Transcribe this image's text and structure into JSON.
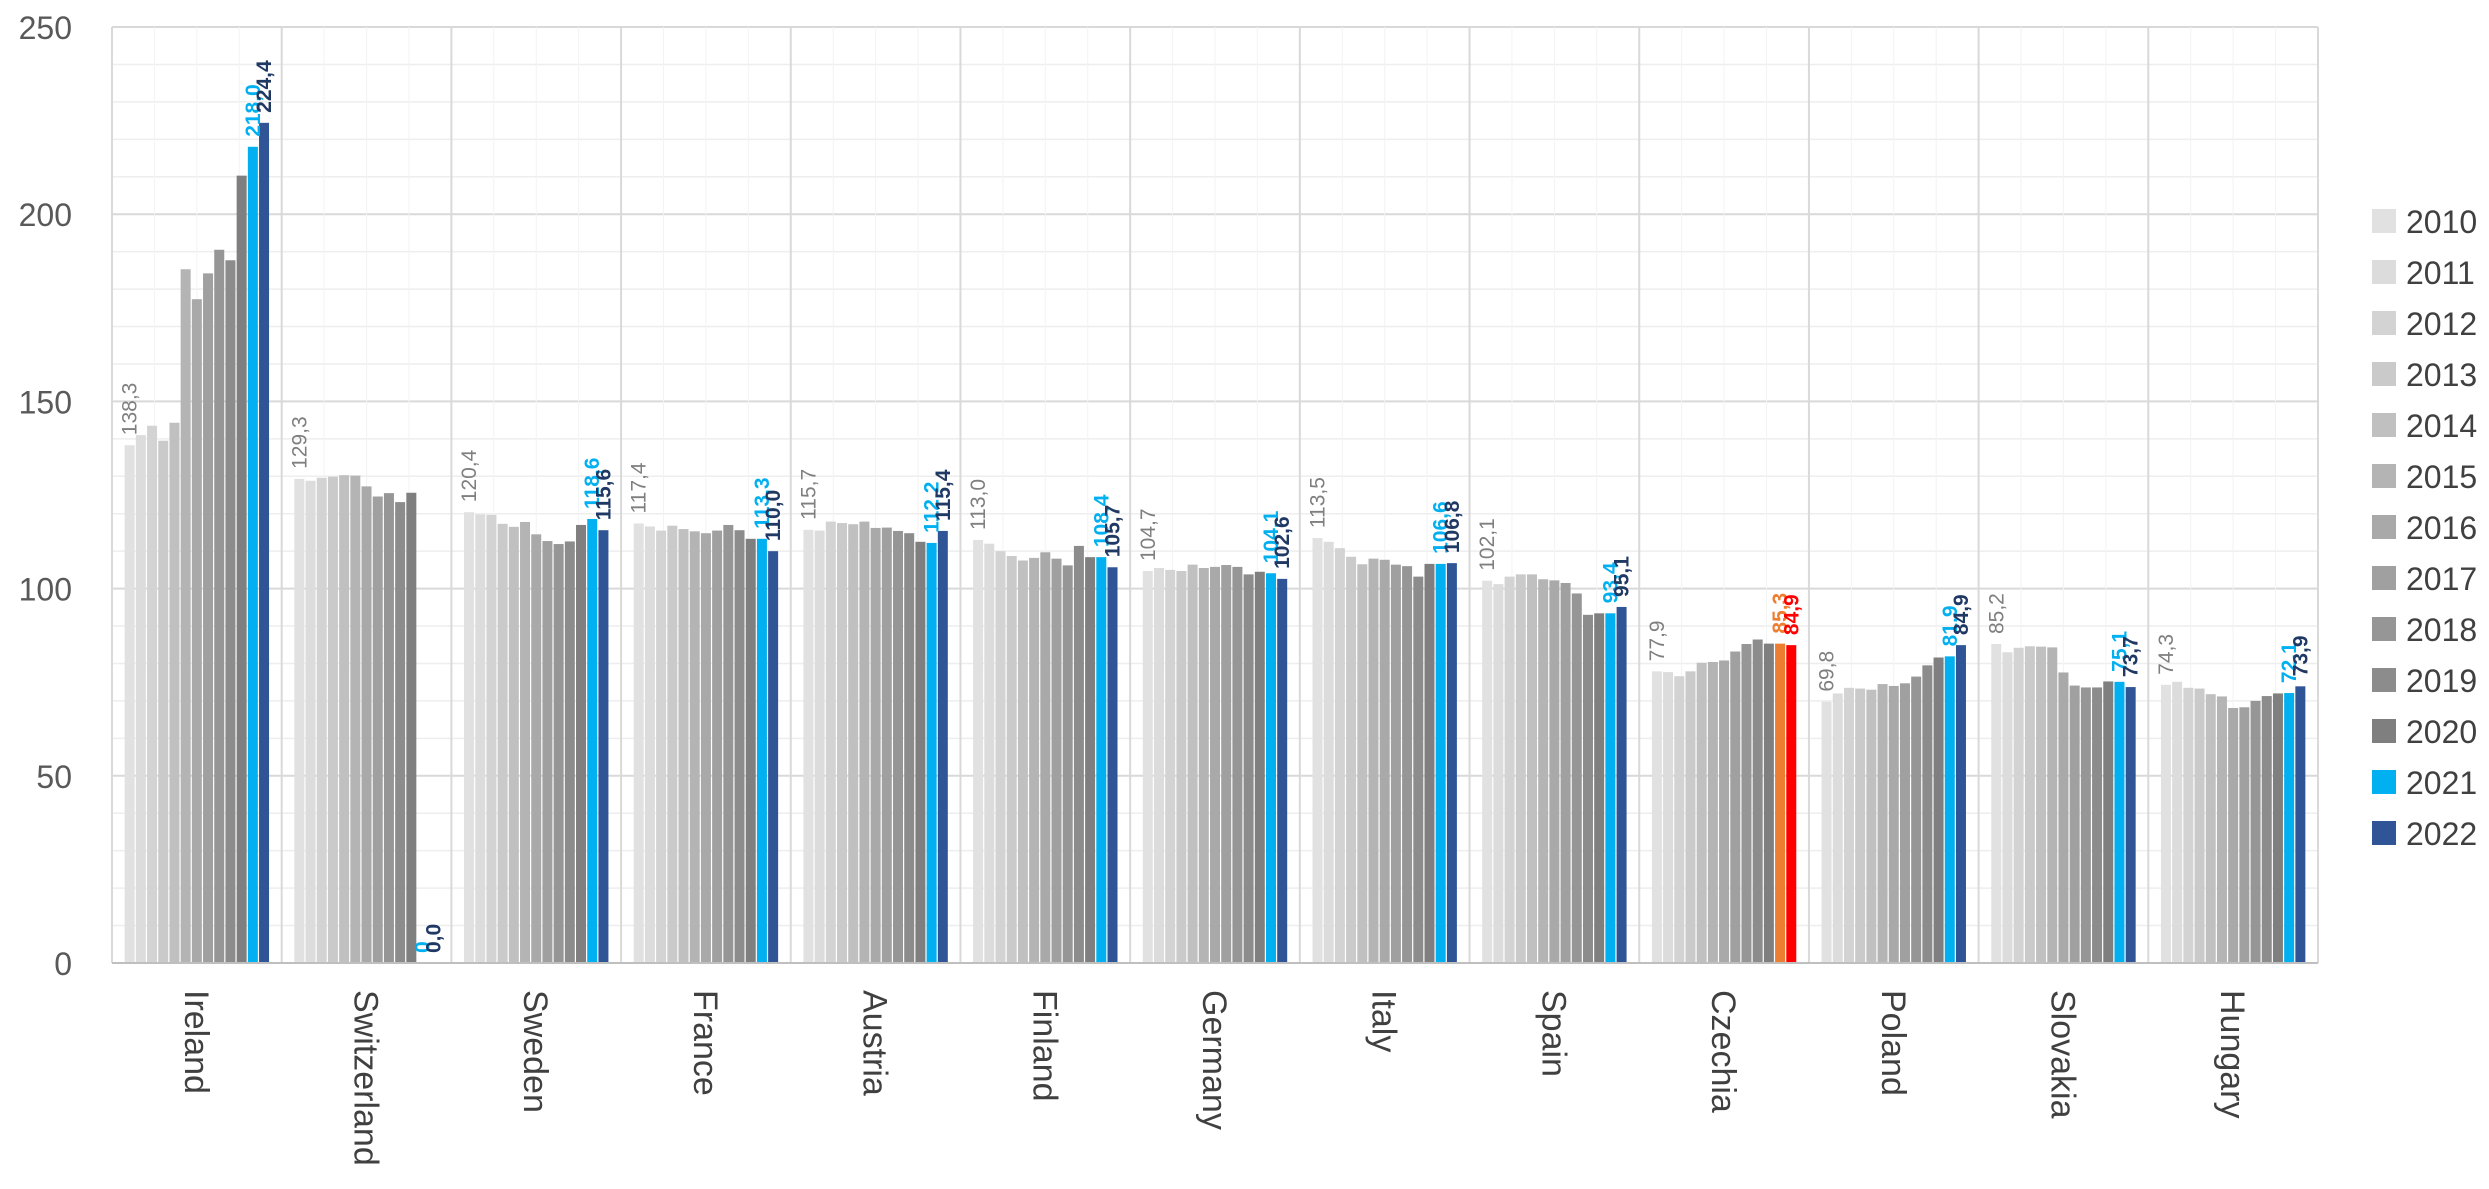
{
  "chart_data": {
    "type": "bar",
    "title": "",
    "xlabel": "",
    "ylabel": "",
    "ylim": [
      0,
      250
    ],
    "y_ticks": [
      "0",
      "50",
      "100",
      "150",
      "200",
      "250"
    ],
    "grid": true,
    "legend_position": "right",
    "categories": [
      "Ireland",
      "Switzerland",
      "Sweden",
      "France",
      "Austria",
      "Finland",
      "Germany",
      "Italy",
      "Spain",
      "Czechia",
      "Poland",
      "Slovakia",
      "Hungary"
    ],
    "series": [
      {
        "name": "2010",
        "color": "#e1e1e1",
        "values": [
          138.3,
          129.3,
          120.4,
          117.4,
          115.7,
          113.0,
          104.7,
          113.5,
          102.1,
          77.9,
          69.8,
          85.2,
          74.3
        ]
      },
      {
        "name": "2011",
        "color": "#dcdcdc",
        "values": [
          141.0,
          128.8,
          119.8,
          116.6,
          115.5,
          112.0,
          105.5,
          112.5,
          101.2,
          77.7,
          72.0,
          83.0,
          75.1
        ]
      },
      {
        "name": "2012",
        "color": "#d3d3d3",
        "values": [
          143.5,
          129.6,
          119.7,
          115.5,
          117.9,
          110.0,
          105.0,
          110.8,
          103.2,
          76.6,
          73.5,
          84.2,
          73.5
        ]
      },
      {
        "name": "2013",
        "color": "#cacaca",
        "values": [
          139.5,
          129.9,
          117.3,
          116.8,
          117.5,
          108.7,
          104.7,
          108.5,
          103.8,
          77.9,
          73.3,
          84.6,
          73.3
        ]
      },
      {
        "name": "2014",
        "color": "#c0c0c0",
        "values": [
          144.3,
          130.3,
          116.5,
          115.9,
          117.2,
          107.5,
          106.4,
          106.5,
          103.8,
          80.2,
          73.0,
          84.5,
          71.8
        ]
      },
      {
        "name": "2015",
        "color": "#b4b4b4",
        "values": [
          185.3,
          130.2,
          117.8,
          115.3,
          117.9,
          108.2,
          105.5,
          108.0,
          102.5,
          80.4,
          74.5,
          84.3,
          71.2
        ]
      },
      {
        "name": "2016",
        "color": "#a9a9a9",
        "values": [
          177.3,
          127.3,
          114.5,
          114.8,
          116.2,
          109.7,
          105.8,
          107.7,
          102.2,
          80.8,
          74.0,
          77.6,
          68.1
        ]
      },
      {
        "name": "2017",
        "color": "#a0a0a0",
        "values": [
          184.2,
          124.6,
          112.7,
          115.5,
          116.3,
          108.0,
          106.3,
          106.4,
          101.5,
          83.2,
          74.7,
          74.1,
          68.3
        ]
      },
      {
        "name": "2018",
        "color": "#969696",
        "values": [
          190.5,
          125.5,
          111.9,
          117.0,
          115.4,
          106.2,
          105.8,
          106.0,
          98.7,
          85.2,
          76.5,
          73.6,
          70.0
        ]
      },
      {
        "name": "2019",
        "color": "#8c8c8c",
        "values": [
          187.7,
          123.1,
          112.6,
          115.6,
          114.8,
          111.4,
          103.8,
          103.2,
          93.0,
          86.4,
          79.5,
          73.6,
          71.3
        ]
      },
      {
        "name": "2020",
        "color": "#7f7f7f",
        "values": [
          210.3,
          125.6,
          117.0,
          113.3,
          112.5,
          108.4,
          104.5,
          106.6,
          93.4,
          85.3,
          81.6,
          75.2,
          72.0
        ]
      },
      {
        "name": "2021",
        "color": "#00b0f0",
        "values": [
          218.0,
          0.0,
          118.6,
          113.3,
          112.2,
          108.4,
          104.1,
          106.6,
          93.4,
          85.3,
          81.9,
          75.1,
          72.1
        ]
      },
      {
        "name": "2022",
        "color": "#2f5597",
        "values": [
          224.4,
          0.0,
          115.6,
          110.0,
          115.4,
          105.7,
          102.6,
          106.8,
          95.1,
          84.9,
          84.9,
          73.7,
          73.9
        ]
      }
    ],
    "data_labels": {
      "2010": [
        "138,3",
        "129,3",
        "120,4",
        "117,4",
        "115,7",
        "113,0",
        "104,7",
        "113,5",
        "102,1",
        "77,9",
        "69,8",
        "85,2",
        "74,3"
      ],
      "2021": [
        "218,0",
        "0",
        "118,6",
        "113,3",
        "112,2",
        "108,4",
        "104,1",
        "106,6",
        "93,4",
        "85,3",
        "81,9",
        "75,1",
        "72,1"
      ],
      "2022": [
        "224,4",
        "0,0",
        "115,6",
        "110,0",
        "115,4",
        "105,7",
        "102,6",
        "106,8",
        "95,1",
        "84,9",
        "84,9",
        "73,7",
        "73,9"
      ]
    },
    "label_colors": {
      "2010": "#7f7f7f",
      "2021": "#00b0f0",
      "2022": "#203864"
    },
    "highlight": {
      "category": "Czechia",
      "colors": {
        "2021": "#ed7d31",
        "2022": "#ff0000"
      },
      "label_colors": {
        "2021": "#ed7d31",
        "2022": "#ff0000"
      }
    }
  }
}
